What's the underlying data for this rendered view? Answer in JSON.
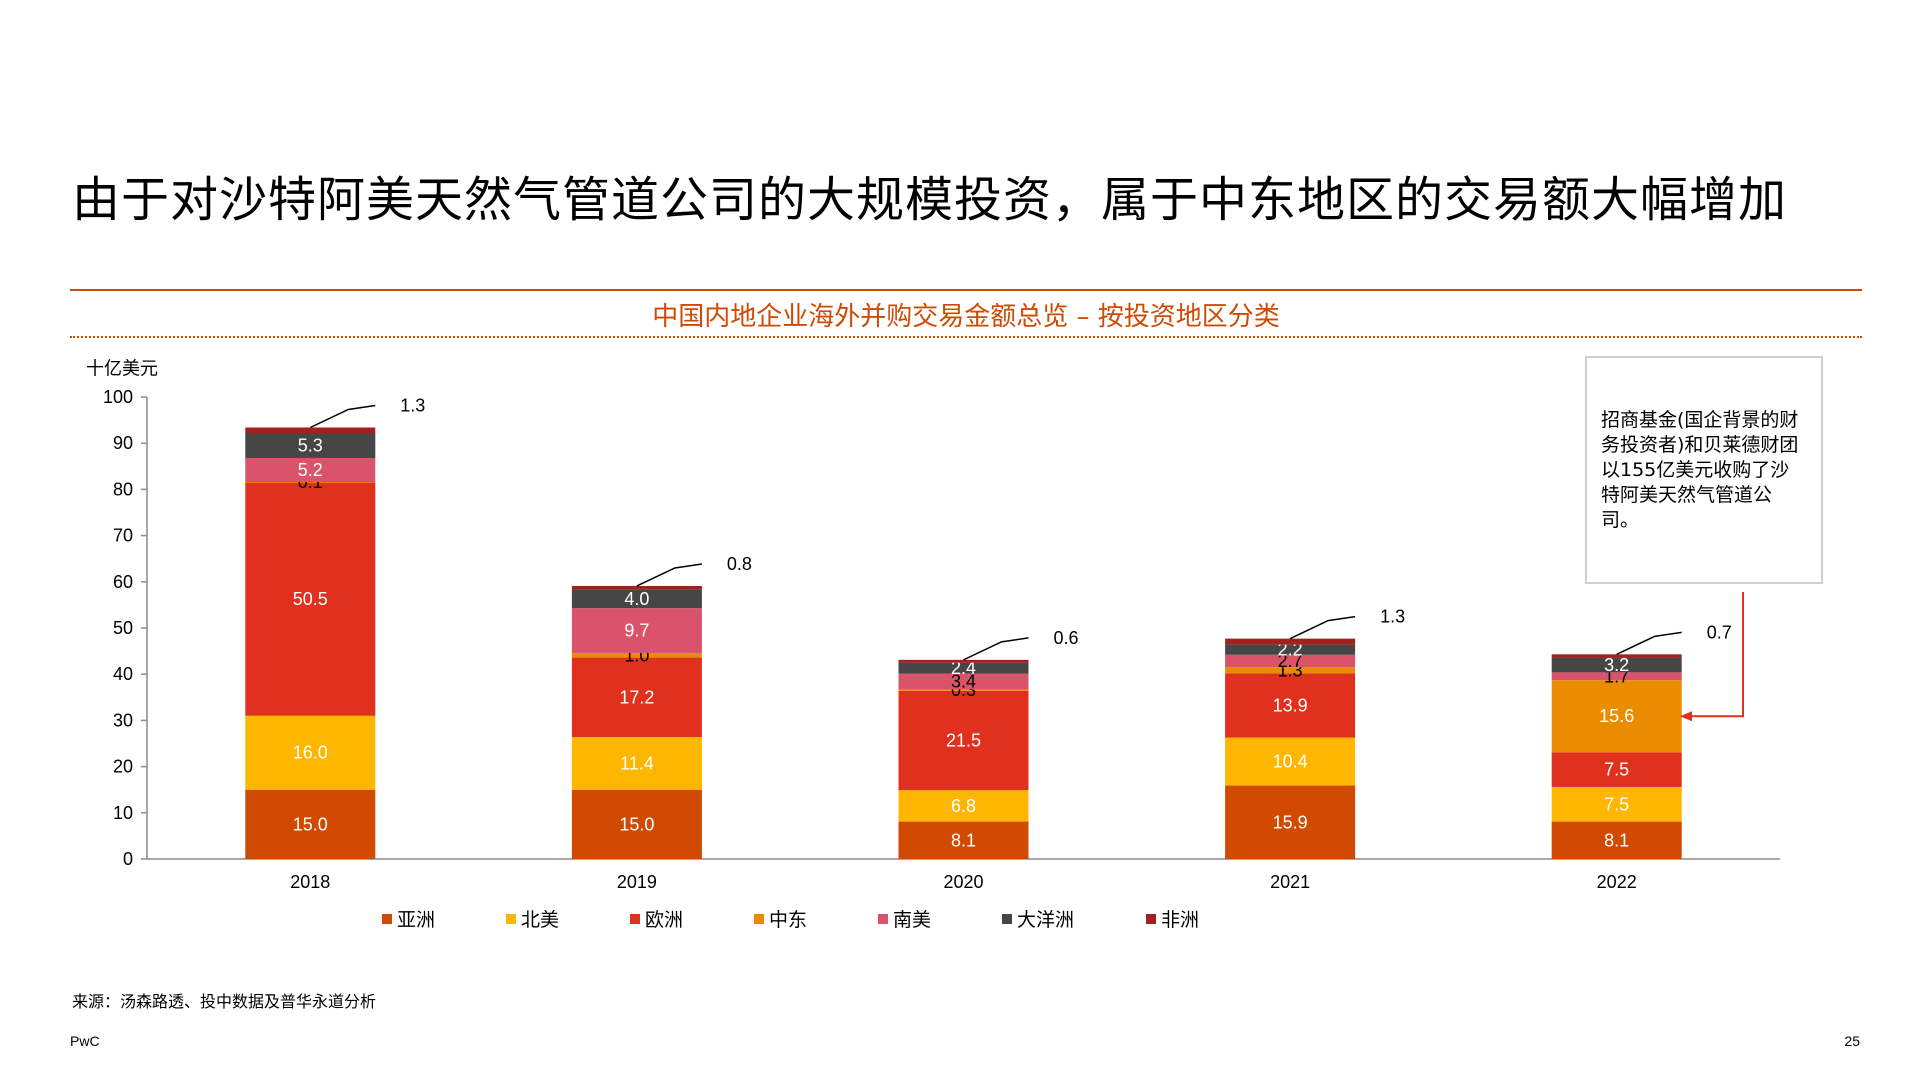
{
  "page": {
    "title": "由于对沙特阿美天然气管道公司的大规模投资，属于中东地区的交易额大幅增加",
    "source": "来源：汤森路透、投中数据及普华永道分析",
    "footer_brand": "PwC",
    "page_number": "25"
  },
  "callout": {
    "text": "招商基金(国企背景的财务投资者)和贝莱德财团以155亿美元收购了沙特阿美天然气管道公司。"
  },
  "colors": {
    "accent": "#D04A02",
    "annotation": "#E0301E"
  },
  "chart_data": {
    "type": "bar",
    "stacked": true,
    "title": "中国内地企业海外并购交易金额总览 – 按投资地区分类",
    "ylabel": "十亿美元",
    "xlabel": "",
    "ylim": [
      0,
      100
    ],
    "yticks": [
      0,
      10,
      20,
      30,
      40,
      50,
      60,
      70,
      80,
      90,
      100
    ],
    "grid": false,
    "legend_position": "bottom",
    "categories": [
      "2018",
      "2019",
      "2020",
      "2021",
      "2022"
    ],
    "series": [
      {
        "name": "亚洲",
        "color": "#D04A02",
        "values": [
          15.0,
          15.0,
          8.1,
          15.9,
          8.1
        ],
        "labels": [
          "15.0",
          "15.0",
          "8.1",
          "15.9",
          "8.1"
        ]
      },
      {
        "name": "北美",
        "color": "#FFB600",
        "values": [
          16.0,
          11.4,
          6.8,
          10.4,
          7.5
        ],
        "labels": [
          "16.0",
          "11.4",
          "6.8",
          "10.4",
          "7.5"
        ]
      },
      {
        "name": "欧洲",
        "color": "#E0301E",
        "values": [
          50.5,
          17.2,
          21.5,
          13.9,
          7.5
        ],
        "labels": [
          "50.5",
          "17.2",
          "21.5",
          "13.9",
          "7.5"
        ]
      },
      {
        "name": "中东",
        "color": "#EB8C00",
        "values": [
          0.1,
          1.0,
          0.3,
          1.3,
          15.6
        ],
        "labels": [
          "0.1",
          "1.0",
          "0.3",
          "1.3",
          "15.6"
        ]
      },
      {
        "name": "南美",
        "color": "#DB536A",
        "values": [
          5.2,
          9.7,
          3.4,
          2.7,
          1.7
        ],
        "labels": [
          "5.2",
          "9.7",
          "3.4",
          "2.7",
          "1.7"
        ]
      },
      {
        "name": "大洋洲",
        "color": "#464646",
        "values": [
          5.3,
          4.0,
          2.4,
          2.2,
          3.2
        ],
        "labels": [
          "5.3",
          "4.0",
          "2.4",
          "2.2",
          "3.2"
        ]
      },
      {
        "name": "非洲",
        "color": "#A32020",
        "values": [
          1.3,
          0.8,
          0.6,
          1.3,
          0.7
        ],
        "labels": [
          "1.3",
          "0.8",
          "0.6",
          "1.3",
          "0.7"
        ]
      }
    ]
  }
}
